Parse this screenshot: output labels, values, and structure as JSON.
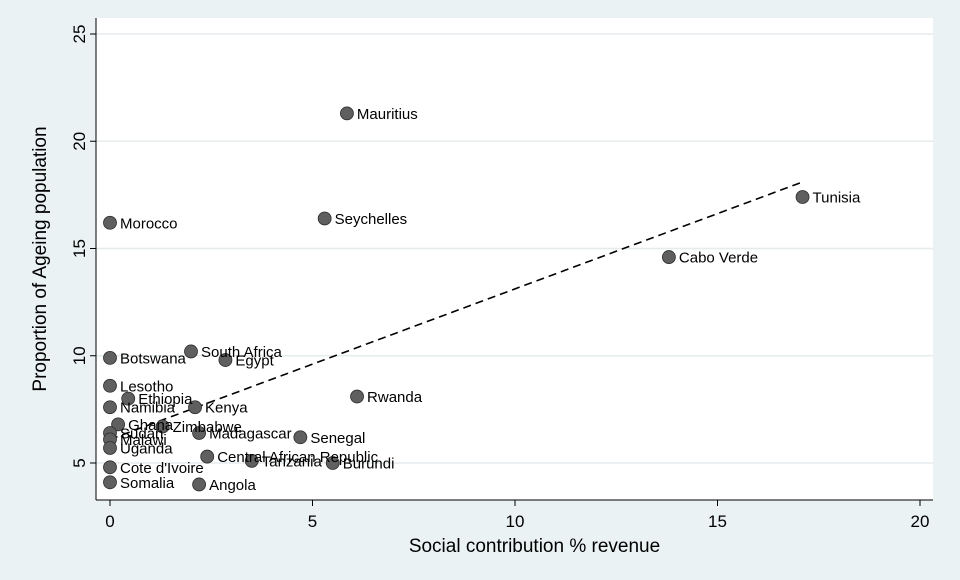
{
  "chart_data": {
    "type": "scatter",
    "xlabel": "Social contribution % revenue",
    "ylabel": "Proportion of Ageing population",
    "xlim": [
      0,
      20
    ],
    "ylim": [
      4,
      25
    ],
    "x_ticks": [
      0,
      5,
      10,
      15,
      20
    ],
    "y_ticks": [
      5,
      10,
      15,
      20,
      25
    ],
    "grid": "horizontal",
    "fit_line": {
      "style": "dashed",
      "x": [
        0.0,
        17.1
      ],
      "y": [
        6.1,
        18.1
      ]
    },
    "points": [
      {
        "label": "Mauritius",
        "x": 5.85,
        "y": 21.3
      },
      {
        "label": "Tunisia",
        "x": 17.1,
        "y": 17.4
      },
      {
        "label": "Morocco",
        "x": 0.0,
        "y": 16.2
      },
      {
        "label": "Seychelles",
        "x": 5.3,
        "y": 16.4
      },
      {
        "label": "Cabo Verde",
        "x": 13.8,
        "y": 14.6
      },
      {
        "label": "South Africa",
        "x": 2.0,
        "y": 10.2
      },
      {
        "label": "Egypt",
        "x": 2.85,
        "y": 9.8
      },
      {
        "label": "Botswana",
        "x": 0.0,
        "y": 9.9
      },
      {
        "label": "Lesotho",
        "x": 0.0,
        "y": 8.6
      },
      {
        "label": "Rwanda",
        "x": 6.1,
        "y": 8.1
      },
      {
        "label": "Ethiopia",
        "x": 0.45,
        "y": 8.0
      },
      {
        "label": "Namibia",
        "x": 0.0,
        "y": 7.6
      },
      {
        "label": "Kenya",
        "x": 2.1,
        "y": 7.6
      },
      {
        "label": "Ghana",
        "x": 0.2,
        "y": 6.8
      },
      {
        "label": "Zimbabwe",
        "x": 1.3,
        "y": 6.7
      },
      {
        "label": "Madagascar",
        "x": 2.2,
        "y": 6.4
      },
      {
        "label": "Senegal",
        "x": 4.7,
        "y": 6.2
      },
      {
        "label": "Sudan",
        "x": 0.0,
        "y": 6.4
      },
      {
        "label": "Malawi",
        "x": 0.0,
        "y": 6.1
      },
      {
        "label": "Uganda",
        "x": 0.0,
        "y": 5.7
      },
      {
        "label": "Central African Republic",
        "x": 2.4,
        "y": 5.3
      },
      {
        "label": "Tanzania",
        "x": 3.5,
        "y": 5.1
      },
      {
        "label": "Burundi",
        "x": 5.5,
        "y": 5.0
      },
      {
        "label": "Cote d'Ivoire",
        "x": 0.0,
        "y": 4.8
      },
      {
        "label": "Somalia",
        "x": 0.0,
        "y": 4.1
      },
      {
        "label": "Angola",
        "x": 2.2,
        "y": 4.0
      }
    ]
  }
}
